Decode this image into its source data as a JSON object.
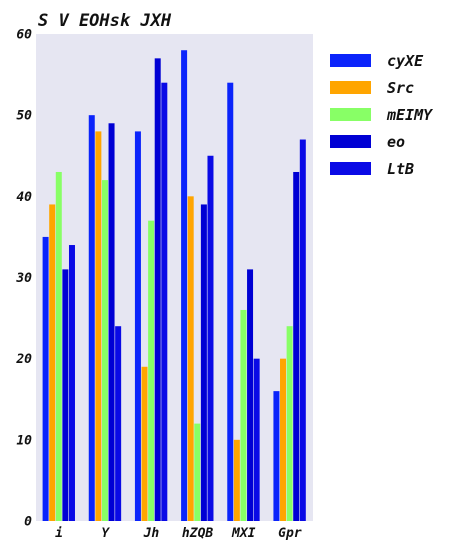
{
  "chart_data": {
    "type": "bar",
    "title": "S V  EOHsk JXH",
    "xlabel": "",
    "ylabel": "",
    "categories": [
      "i",
      "Y",
      "Jh",
      "hZQB",
      "MXI",
      "Gpr"
    ],
    "ylim": [
      0,
      60
    ],
    "yticks": [
      0,
      10,
      20,
      30,
      40,
      50,
      60
    ],
    "grid": false,
    "legend_position": "right",
    "series": [
      {
        "name": "cyXE",
        "color": "#0b24fb",
        "values": [
          35,
          50,
          48,
          58,
          54,
          16
        ]
      },
      {
        "name": "Src",
        "color": "#ffa500",
        "values": [
          39,
          48,
          19,
          40,
          10,
          20
        ]
      },
      {
        "name": "mEIMY",
        "color": "#88ff66",
        "values": [
          43,
          42,
          37,
          12,
          26,
          24
        ]
      },
      {
        "name": "eo",
        "color": "#0000d4",
        "values": [
          31,
          49,
          57,
          39,
          31,
          43
        ]
      },
      {
        "name": "LtB",
        "color": "#0a0ae6",
        "values": [
          34,
          24,
          54,
          45,
          20,
          47
        ]
      }
    ]
  }
}
